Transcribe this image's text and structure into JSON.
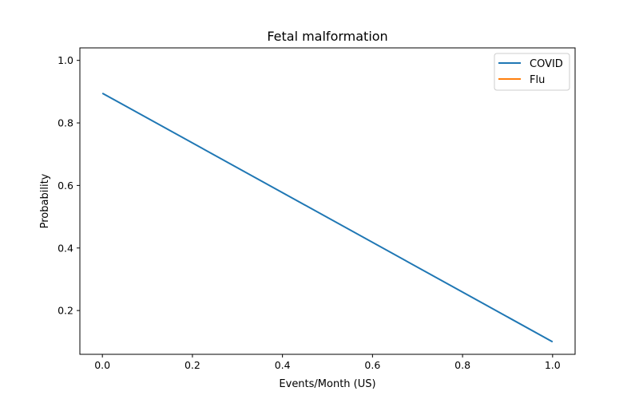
{
  "chart_data": {
    "type": "line",
    "title": "Fetal malformation",
    "xlabel": "Events/Month (US)",
    "ylabel": "Probability",
    "xlim": [
      -0.05,
      1.05
    ],
    "ylim": [
      0.06,
      1.04
    ],
    "xticks": [
      "0.0",
      "0.2",
      "0.4",
      "0.6",
      "0.8",
      "1.0"
    ],
    "yticks": [
      "0.2",
      "0.4",
      "0.6",
      "0.8",
      "1.0"
    ],
    "grid": false,
    "legend_position": "top-right",
    "series": [
      {
        "name": "COVID",
        "color": "#1f77b4",
        "x": [
          0,
          1
        ],
        "y": [
          0.895,
          0.1
        ]
      },
      {
        "name": "Flu",
        "color": "#ff7f0e",
        "x": [],
        "y": []
      }
    ]
  }
}
